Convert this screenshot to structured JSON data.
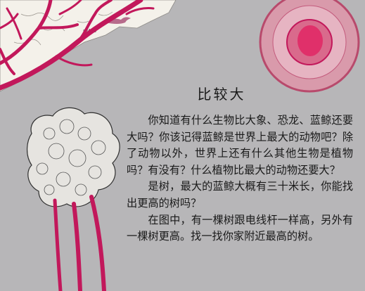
{
  "page": {
    "title": "比较大",
    "paragraphs": [
      "你知道有什么生物比大象、恐龙、蓝鲸还要大吗？你该记得蓝鲸是世界上最大的动物吧？除了动物以外，世界上还有什么其他生物是植物吗？有没有？什么植物比最大的动物还要大？",
      "是树，最大的蓝鲸大概有三十米长，你能找出更高的树吗？",
      "在图中，有一棵树跟电线杆一样高，另外有一棵树更高。找一找你家附近最高的树。"
    ]
  },
  "colors": {
    "background": "#b7b6b8",
    "branch": "#c2185b",
    "cell_outer": "#e8a3b5",
    "cell_inner": "#e0306a"
  }
}
